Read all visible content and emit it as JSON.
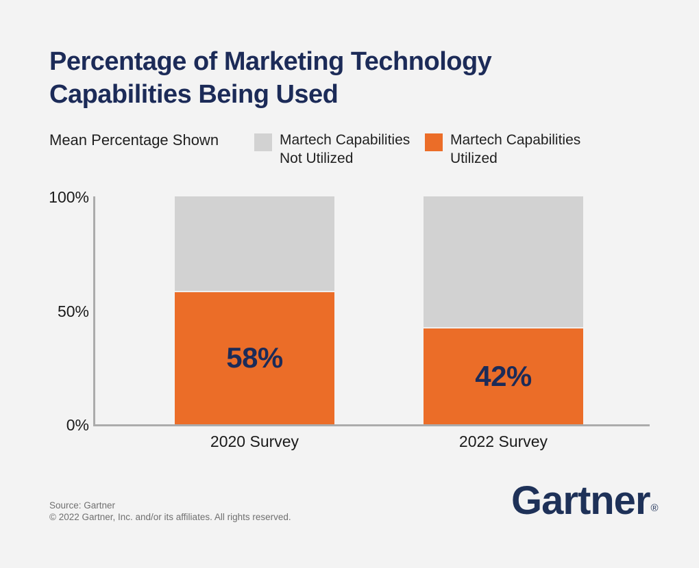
{
  "page": {
    "background_color": "#F3F3F3",
    "accent_navy": "#1C2B58",
    "accent_orange": "#EB6D28",
    "neutral_gray": "#D2D2D2"
  },
  "title": {
    "line1": "Percentage of Marketing Technology",
    "line2": "Capabilities Being Used"
  },
  "subtitle": "Mean Percentage Shown",
  "legend": {
    "not_utilized": {
      "label_line1": "Martech Capabilities",
      "label_line2": "Not Utilized",
      "color": "#D2D2D2"
    },
    "utilized": {
      "label_line1": "Martech Capabilities",
      "label_line2": "Utilized",
      "color": "#EB6D28"
    }
  },
  "chart_data": {
    "type": "bar",
    "stacked": true,
    "title": "Percentage of Marketing Technology Capabilities Being Used",
    "subtitle": "Mean Percentage Shown",
    "categories": [
      "2020 Survey",
      "2022 Survey"
    ],
    "series": [
      {
        "name": "Martech Capabilities Utilized",
        "color": "#EB6D28",
        "values": [
          58,
          42
        ]
      },
      {
        "name": "Martech Capabilities Not Utilized",
        "color": "#D2D2D2",
        "values": [
          42,
          58
        ]
      }
    ],
    "value_labels": [
      "58%",
      "42%"
    ],
    "ylim": [
      0,
      100
    ],
    "yticks": {
      "top": "100%",
      "mid": "50%",
      "bottom": "0%"
    },
    "grid": false,
    "legend_position": "top"
  },
  "footer": {
    "source": "Source: Gartner",
    "copyright": "© 2022 Gartner, Inc. and/or its affiliates. All rights reserved.",
    "logo_text": "Gartner",
    "registered_mark": "®"
  }
}
